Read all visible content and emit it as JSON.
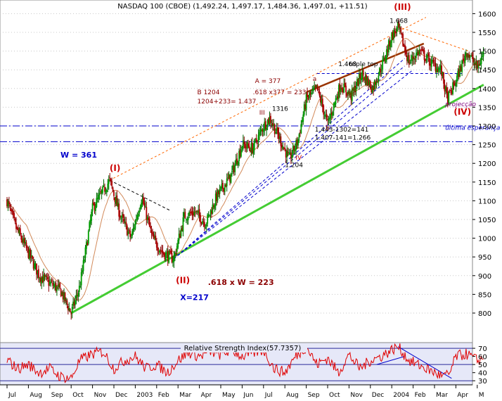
{
  "chart_data": [
    {
      "type": "candlestick",
      "title": "NASDAQ 100 (CBOE) (1,492.24, 1,497.17, 1,484.36, 1,497.01, +11.51)",
      "ylim": [
        750,
        1650
      ],
      "y_ticks": [
        800,
        850,
        900,
        950,
        1000,
        1050,
        1100,
        1150,
        1200,
        1250,
        1300,
        1350,
        1400,
        1450,
        1500,
        1550,
        1600
      ],
      "x_range": [
        0,
        22.3
      ],
      "x_ticks": [
        {
          "x": 0,
          "label": "Jul"
        },
        {
          "x": 1,
          "label": "Aug"
        },
        {
          "x": 2,
          "label": "Sep"
        },
        {
          "x": 3,
          "label": "Oct"
        },
        {
          "x": 4,
          "label": "Nov"
        },
        {
          "x": 5,
          "label": "Dec"
        },
        {
          "x": 6,
          "label": "2003"
        },
        {
          "x": 7,
          "label": "Feb"
        },
        {
          "x": 8,
          "label": "Mar"
        },
        {
          "x": 9,
          "label": "Apr"
        },
        {
          "x": 10,
          "label": "May"
        },
        {
          "x": 11,
          "label": "Jun"
        },
        {
          "x": 12,
          "label": "Jul"
        },
        {
          "x": 13,
          "label": "Aug"
        },
        {
          "x": 14,
          "label": "Sep"
        },
        {
          "x": 15,
          "label": "Oct"
        },
        {
          "x": 16,
          "label": "Nov"
        },
        {
          "x": 17,
          "label": "Dec"
        },
        {
          "x": 18,
          "label": "2004"
        },
        {
          "x": 19,
          "label": "Feb"
        },
        {
          "x": 20,
          "label": "Mar"
        },
        {
          "x": 21,
          "label": "Apr"
        },
        {
          "x": 22,
          "label": "M"
        }
      ],
      "anchors": [
        [
          0,
          1100
        ],
        [
          0.4,
          1030
        ],
        [
          1.0,
          960
        ],
        [
          1.5,
          900
        ],
        [
          2.0,
          880
        ],
        [
          2.5,
          860
        ],
        [
          3.0,
          800
        ],
        [
          3.4,
          870
        ],
        [
          4.0,
          1080
        ],
        [
          4.8,
          1155
        ],
        [
          5.3,
          1060
        ],
        [
          5.8,
          1000
        ],
        [
          6.3,
          1110
        ],
        [
          6.8,
          1000
        ],
        [
          7.3,
          960
        ],
        [
          7.8,
          945
        ],
        [
          8.3,
          1060
        ],
        [
          8.8,
          1070
        ],
        [
          9.3,
          1040
        ],
        [
          9.8,
          1110
        ],
        [
          10.5,
          1170
        ],
        [
          11.0,
          1250
        ],
        [
          11.5,
          1240
        ],
        [
          12.0,
          1300
        ],
        [
          12.3,
          1320
        ],
        [
          12.8,
          1260
        ],
        [
          13.2,
          1210
        ],
        [
          13.6,
          1260
        ],
        [
          14.0,
          1370
        ],
        [
          14.5,
          1400
        ],
        [
          15.0,
          1305
        ],
        [
          15.6,
          1410
        ],
        [
          16.1,
          1380
        ],
        [
          16.6,
          1440
        ],
        [
          17.1,
          1400
        ],
        [
          17.6,
          1470
        ],
        [
          18.0,
          1540
        ],
        [
          18.3,
          1563
        ],
        [
          18.8,
          1470
        ],
        [
          19.3,
          1500
        ],
        [
          19.8,
          1470
        ],
        [
          20.3,
          1450
        ],
        [
          20.6,
          1370
        ],
        [
          21.0,
          1420
        ],
        [
          21.5,
          1500
        ],
        [
          22.0,
          1455
        ],
        [
          22.3,
          1495
        ]
      ],
      "lines": [
        {
          "name": "long-term support",
          "color": "#44cc33",
          "points": [
            [
              3.0,
              800
            ],
            [
              22.3,
              1410
            ]
          ]
        },
        {
          "name": "fan line 1",
          "color": "#0000cc",
          "points": [
            [
              7.8,
              945
            ],
            [
              18.6,
              1460
            ]
          ]
        },
        {
          "name": "fan line 2",
          "color": "#0000cc",
          "points": [
            [
              7.8,
              945
            ],
            [
              18.6,
              1480
            ]
          ]
        },
        {
          "name": "fan line 3",
          "color": "#0000cc",
          "points": [
            [
              7.8,
              945
            ],
            [
              19.0,
              1450
            ]
          ]
        },
        {
          "name": "upper channel",
          "color": "#ff6600",
          "points": [
            [
              4.8,
              1155
            ],
            [
              19.6,
              1590
            ]
          ]
        },
        {
          "name": "ceiling",
          "color": "#ff6600",
          "points": [
            [
              18.3,
              1565
            ],
            [
              21.6,
              1500
            ]
          ]
        },
        {
          "name": "inner channel",
          "color": "#993300",
          "points": [
            [
              14.0,
              1390
            ],
            [
              19.5,
              1520
            ]
          ]
        },
        {
          "name": "projection line",
          "color": "#000000",
          "points": [
            [
              4.8,
              1155
            ],
            [
              7.6,
              1075
            ]
          ]
        },
        {
          "name": "resistance",
          "color": "#0000cc",
          "points": [
            [
              14.5,
              1440
            ],
            [
              21.3,
              1440
            ]
          ]
        }
      ],
      "hlines": [
        {
          "y": 1300,
          "color": "#0000cc",
          "style": "dashdot"
        },
        {
          "y": 1258,
          "color": "#0000cc",
          "style": "dashdot"
        }
      ],
      "annotations": [
        {
          "text": "(I)",
          "x": 4.8,
          "y": 1180,
          "color": "#cc0000"
        },
        {
          "text": "(II)",
          "x": 7.9,
          "y": 880,
          "color": "#cc0000"
        },
        {
          "text": "(III)",
          "x": 18.1,
          "y": 1610,
          "color": "#cc0000"
        },
        {
          "text": "(IV)",
          "x": 20.9,
          "y": 1330,
          "color": "#cc0000"
        },
        {
          "text": "W = 361",
          "x": 2.5,
          "y": 1215,
          "color": "#0000cc"
        },
        {
          "text": "X=217",
          "x": 8.1,
          "y": 835,
          "color": "#0000cc"
        },
        {
          "text": ".618 x W = 223",
          "x": 9.4,
          "y": 875,
          "color": "#8b0000"
        },
        {
          "text": "A = 377",
          "x": 11.6,
          "y": 1415,
          "color": "#8b0000"
        },
        {
          "text": ".618 x377 = 233",
          "x": 11.5,
          "y": 1385,
          "color": "#8b0000"
        },
        {
          "text": "B 1204",
          "x": 8.9,
          "y": 1385,
          "color": "#8b0000"
        },
        {
          "text": "1204+233= 1.437",
          "x": 8.9,
          "y": 1360,
          "color": "#8b0000"
        },
        {
          "text": "1.443-1302=141",
          "x": 14.4,
          "y": 1285,
          "color": "#000000"
        },
        {
          "text": "1.407-141=1.266",
          "x": 14.4,
          "y": 1263,
          "color": "#000000"
        },
        {
          "text": "1.668",
          "x": 17.9,
          "y": 1575,
          "color": "#000000"
        },
        {
          "text": "1.468",
          "x": 15.5,
          "y": 1460,
          "color": "#000000"
        },
        {
          "text": "triple top",
          "x": 16.0,
          "y": 1460,
          "color": "#000000"
        },
        {
          "text": "1316",
          "x": 12.4,
          "y": 1340,
          "color": "#000000"
        },
        {
          "text": "1.204",
          "x": 13.0,
          "y": 1190,
          "color": "#000000"
        },
        {
          "text": "projecção",
          "x": 20.5,
          "y": 1353,
          "color": "#800080"
        },
        {
          "text": "última esperança",
          "x": 20.5,
          "y": 1290,
          "color": "#0000cc"
        },
        {
          "text": "III",
          "x": 11.8,
          "y": 1330,
          "color": "#8b0000"
        },
        {
          "text": "IV",
          "x": 13.5,
          "y": 1210,
          "color": "#cc0000"
        },
        {
          "text": "a",
          "x": 14.3,
          "y": 1420,
          "color": "#8b0000"
        },
        {
          "text": "b",
          "x": 14.9,
          "y": 1290,
          "color": "#8b0000"
        }
      ]
    },
    {
      "type": "line",
      "title": "Relative Strength Index(57.7357)",
      "ylim": [
        25,
        77
      ],
      "y_ticks": [
        30,
        40,
        50,
        60,
        70
      ],
      "grid_y": [
        30,
        50,
        70
      ],
      "anchors": [
        [
          0,
          55
        ],
        [
          0.5,
          45
        ],
        [
          1.0,
          50
        ],
        [
          1.5,
          40
        ],
        [
          2.0,
          45
        ],
        [
          2.5,
          35
        ],
        [
          3.0,
          33
        ],
        [
          3.4,
          55
        ],
        [
          4.0,
          63
        ],
        [
          4.5,
          66
        ],
        [
          5.0,
          45
        ],
        [
          5.5,
          55
        ],
        [
          6.0,
          60
        ],
        [
          6.5,
          45
        ],
        [
          7.0,
          50
        ],
        [
          7.5,
          40
        ],
        [
          8.0,
          55
        ],
        [
          8.5,
          65
        ],
        [
          9.0,
          60
        ],
        [
          9.5,
          66
        ],
        [
          10.0,
          62
        ],
        [
          10.5,
          68
        ],
        [
          11.0,
          60
        ],
        [
          11.5,
          64
        ],
        [
          12.0,
          68
        ],
        [
          12.5,
          45
        ],
        [
          13.0,
          40
        ],
        [
          13.5,
          60
        ],
        [
          14.0,
          72
        ],
        [
          14.5,
          50
        ],
        [
          15.0,
          58
        ],
        [
          15.5,
          40
        ],
        [
          16.0,
          62
        ],
        [
          16.5,
          45
        ],
        [
          17.0,
          55
        ],
        [
          17.5,
          60
        ],
        [
          18.0,
          68
        ],
        [
          18.3,
          72
        ],
        [
          18.8,
          55
        ],
        [
          19.2,
          50
        ],
        [
          19.6,
          45
        ],
        [
          20.0,
          40
        ],
        [
          20.4,
          35
        ],
        [
          20.7,
          38
        ],
        [
          21.0,
          60
        ],
        [
          21.5,
          63
        ],
        [
          22.0,
          55
        ],
        [
          22.3,
          57.7
        ]
      ],
      "lines": [
        {
          "name": "rsi trend",
          "color": "#0000cc",
          "points": [
            [
              18.3,
              72
            ],
            [
              20.8,
              33
            ]
          ]
        },
        {
          "name": "rsi support",
          "color": "#0000cc",
          "points": [
            [
              17.3,
              50
            ],
            [
              18.6,
              60
            ]
          ]
        }
      ]
    }
  ]
}
